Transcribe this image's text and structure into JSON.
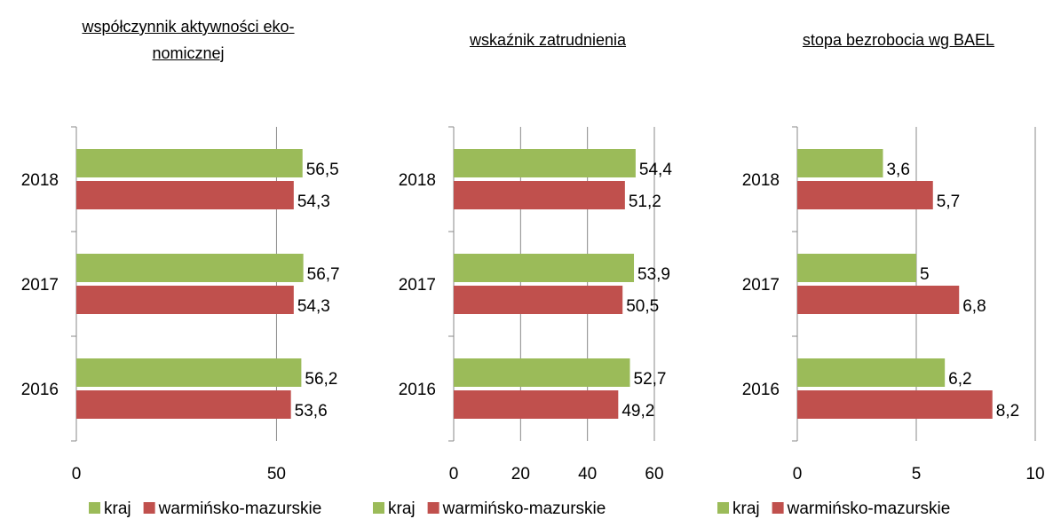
{
  "chart_data": [
    {
      "type": "bar",
      "title": "współczynnik aktywności eko-\nnomicznej",
      "categories": [
        "2018",
        "2017",
        "2016"
      ],
      "series": [
        {
          "name": "kraj",
          "color": "#9bbb59",
          "values": [
            56.5,
            56.7,
            56.2
          ],
          "value_labels": [
            "56,5",
            "56,7",
            "56,2"
          ]
        },
        {
          "name": "warmińsko-mazurskie",
          "color": "#c0504d",
          "values": [
            54.3,
            54.3,
            53.6
          ],
          "value_labels": [
            "54,3",
            "54,3",
            "53,6"
          ]
        }
      ],
      "xlim": [
        0,
        57
      ],
      "xticks": [
        0,
        50
      ],
      "grid": true
    },
    {
      "type": "bar",
      "title": "wskaźnik zatrudnienia",
      "categories": [
        "2018",
        "2017",
        "2016"
      ],
      "series": [
        {
          "name": "kraj",
          "color": "#9bbb59",
          "values": [
            54.4,
            53.9,
            52.7
          ],
          "value_labels": [
            "54,4",
            "53,9",
            "52,7"
          ]
        },
        {
          "name": "warmińsko-mazurskie",
          "color": "#c0504d",
          "values": [
            51.2,
            50.5,
            49.2
          ],
          "value_labels": [
            "51,2",
            "50,5",
            "49,2"
          ]
        }
      ],
      "xlim": [
        0,
        60
      ],
      "xticks": [
        0,
        20,
        40,
        60
      ],
      "grid": true
    },
    {
      "type": "bar",
      "title": "stopa bezrobocia wg BAEL",
      "categories": [
        "2018",
        "2017",
        "2016"
      ],
      "series": [
        {
          "name": "kraj",
          "color": "#9bbb59",
          "values": [
            3.6,
            5,
            6.2
          ],
          "value_labels": [
            "3,6",
            "5",
            "6,2"
          ]
        },
        {
          "name": "warmińsko-mazurskie",
          "color": "#c0504d",
          "values": [
            5.7,
            6.8,
            8.2
          ],
          "value_labels": [
            "5,7",
            "6,8",
            "8,2"
          ]
        }
      ],
      "xlim": [
        0,
        10
      ],
      "xticks": [
        0,
        5,
        10
      ],
      "grid": true
    }
  ]
}
